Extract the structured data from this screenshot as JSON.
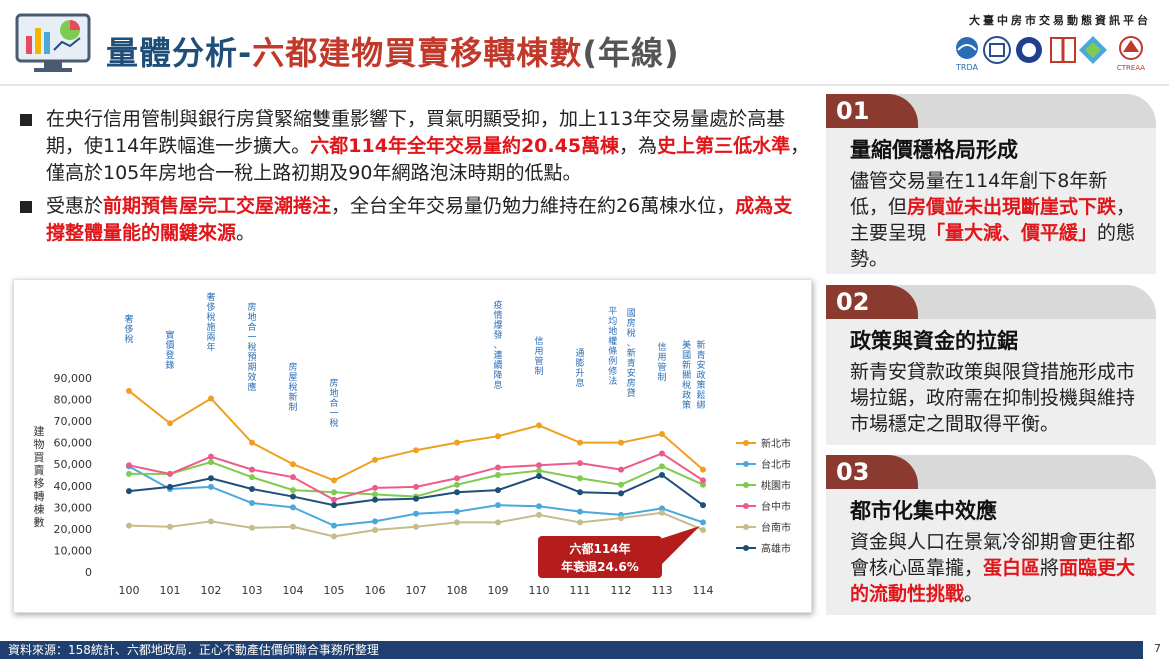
{
  "header": {
    "title_part1": "量體分析-",
    "title_part2": "六都建物買賣移轉棟數",
    "title_part3": "(年線)",
    "org_name": "大臺中房市交易動態資訊平台",
    "logo_text": "TRDA",
    "logo_text2": "CTREAA"
  },
  "bullets": {
    "b1": {
      "t1": "在央行信用管制與銀行房貸緊縮雙重影響下，買氣明顯受抑，加上113年交易量處於高基期，使114年跌幅進一步擴大。",
      "r1": "六都114年全年交易量約20.45萬棟",
      "t2": "，為",
      "r2": "史上第三低水準",
      "t3": "，僅高於105年房地合一稅上路初期及90年網路泡沫時期的低點。"
    },
    "b2": {
      "t1": "受惠於",
      "r1": "前期預售屋完工交屋潮捲注",
      "t2": "，全台全年交易量仍勉力維持在約26萬棟水位，",
      "r2": "成為支撐整體量能的關鍵來源",
      "t3": "。"
    }
  },
  "panels": {
    "p1": {
      "num": "01",
      "title": "量縮價穩格局形成",
      "t1": "儘管交易量在114年創下8年新低，但",
      "r1": "房價並未出現斷崖式下跌",
      "t2": "，主要呈現",
      "r2": "「量大減、價平緩」",
      "t3": "的態勢。"
    },
    "p2": {
      "num": "02",
      "title": "政策與資金的拉鋸",
      "t1": "新青安貸款政策與限貸措施形成市場拉鋸，政府需在抑制投機與維持市場穩定之間取得平衡。"
    },
    "p3": {
      "num": "03",
      "title": "都市化集中效應",
      "t1": "資金與人口在景氣冷卻期會更往都會核心區靠攏，",
      "r1": "蛋白區",
      "t2": "將",
      "r2": "面臨更大的流動性挑戰",
      "t3": "。"
    }
  },
  "footer": {
    "source": "資料來源：158統計、六都地政局．正心不動產估價師聯合事務所整理",
    "page": "7"
  },
  "chart_data": {
    "type": "line",
    "ylabel": "建物買賣移轉棟數",
    "ylim": [
      0,
      90000
    ],
    "yticks": [
      0,
      10000,
      20000,
      30000,
      40000,
      50000,
      60000,
      70000,
      80000,
      90000
    ],
    "ytick_labels": [
      "0",
      "10,000",
      "20,000",
      "30,000",
      "40,000",
      "50,000",
      "60,000",
      "70,000",
      "80,000",
      "90,000"
    ],
    "x": [
      "100",
      "101",
      "102",
      "103",
      "104",
      "105",
      "106",
      "107",
      "108",
      "109",
      "110",
      "111",
      "112",
      "113",
      "114"
    ],
    "series": [
      {
        "name": "新北市",
        "color": "#f0a020",
        "values": [
          84000,
          69000,
          80500,
          60000,
          50000,
          42500,
          52000,
          56500,
          60000,
          63000,
          68000,
          60000,
          60000,
          64000,
          47500
        ]
      },
      {
        "name": "台北市",
        "color": "#4aa8dc",
        "values": [
          49000,
          38500,
          39500,
          32000,
          30000,
          21500,
          23500,
          27000,
          28000,
          31000,
          30500,
          28000,
          26500,
          29500,
          23000
        ]
      },
      {
        "name": "桃園市",
        "color": "#7ecb50",
        "values": [
          45500,
          45500,
          51000,
          44000,
          38000,
          37000,
          36000,
          35000,
          40500,
          45000,
          47000,
          43500,
          40500,
          49000,
          40500
        ]
      },
      {
        "name": "台中市",
        "color": "#ee5a8a",
        "values": [
          49500,
          45500,
          53500,
          47500,
          44000,
          33500,
          39000,
          39500,
          43500,
          48500,
          49500,
          50500,
          47500,
          55000,
          42500
        ]
      },
      {
        "name": "台南市",
        "color": "#c4bc8c",
        "values": [
          21500,
          21000,
          23500,
          20500,
          21000,
          16500,
          19500,
          21000,
          23000,
          23000,
          26500,
          23000,
          25000,
          27500,
          19500
        ]
      },
      {
        "name": "高雄市",
        "color": "#1f4e79",
        "values": [
          37500,
          39500,
          43500,
          38500,
          35000,
          31000,
          33500,
          34000,
          37000,
          38000,
          44500,
          37000,
          36500,
          45000,
          31000
        ]
      }
    ],
    "annotations": [
      {
        "x": "100",
        "text": "奢侈稅"
      },
      {
        "x": "101",
        "text": "實價登錄"
      },
      {
        "x": "102",
        "text": "奢侈稅施兩年"
      },
      {
        "x": "103",
        "text": "房地合一稅預期效應"
      },
      {
        "x": "104",
        "text": "房屋稅新制"
      },
      {
        "x": "105",
        "text": "房地合一稅"
      },
      {
        "x": "109",
        "text": "疫情爆發、連續降息"
      },
      {
        "x": "110",
        "text": "信用管制"
      },
      {
        "x": "111",
        "text": "通膨升息"
      },
      {
        "x": "112",
        "text": "平均地權條例修法"
      },
      {
        "x": "112b",
        "text": "國房稅、新青安房貸"
      },
      {
        "x": "113",
        "text": "信用管制"
      },
      {
        "x": "114a",
        "text": "美國新關稅政策"
      },
      {
        "x": "114b",
        "text": "新青安政策鬆綁"
      }
    ],
    "callout": {
      "line1": "六都114年",
      "line2": "年衰退24.6%"
    }
  }
}
